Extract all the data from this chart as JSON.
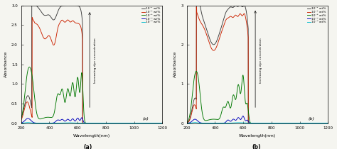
{
  "xlabel": "Wavelength(nm)",
  "ylabel": "Absorbance",
  "xlim": [
    200,
    1200
  ],
  "ylim_a": [
    0,
    3.0
  ],
  "ylim_b": [
    0,
    3.0
  ],
  "xticks": [
    200,
    400,
    600,
    800,
    1000,
    1200
  ],
  "yticks_a": [
    0.0,
    0.5,
    1.0,
    1.5,
    2.0,
    2.5,
    3.0
  ],
  "yticks_b": [
    0,
    1,
    2,
    3
  ],
  "legend_labels": [
    "10⁻¹ wt%",
    "10⁻² wt%",
    "10⁻³ wt%",
    "10⁻⁴ wt%",
    "10⁻⁵ wt%"
  ],
  "line_colors": [
    "#3a3a3a",
    "#cc2200",
    "#007700",
    "#0000bb",
    "#00bbcc"
  ],
  "background_color": "#f5f5f0"
}
